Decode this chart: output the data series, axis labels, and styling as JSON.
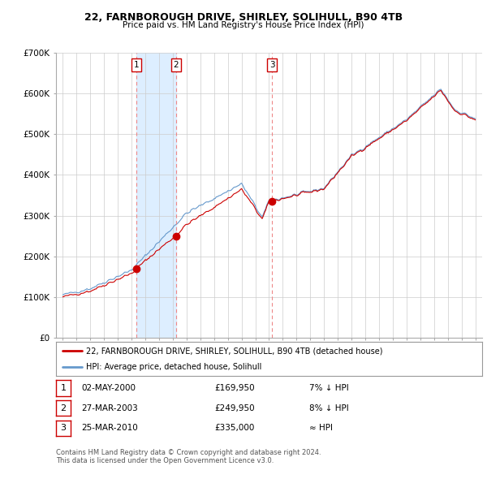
{
  "title": "22, FARNBOROUGH DRIVE, SHIRLEY, SOLIHULL, B90 4TB",
  "subtitle": "Price paid vs. HM Land Registry's House Price Index (HPI)",
  "legend_label_red": "22, FARNBOROUGH DRIVE, SHIRLEY, SOLIHULL, B90 4TB (detached house)",
  "legend_label_blue": "HPI: Average price, detached house, Solihull",
  "footnote1": "Contains HM Land Registry data © Crown copyright and database right 2024.",
  "footnote2": "This data is licensed under the Open Government Licence v3.0.",
  "transactions": [
    {
      "num": 1,
      "date": "02-MAY-2000",
      "price": "£169,950",
      "rel": "7% ↓ HPI",
      "year": 2000.37,
      "value": 169950
    },
    {
      "num": 2,
      "date": "27-MAR-2003",
      "price": "£249,950",
      "rel": "8% ↓ HPI",
      "year": 2003.23,
      "value": 249950
    },
    {
      "num": 3,
      "date": "25-MAR-2010",
      "price": "£335,000",
      "rel": "≈ HPI",
      "year": 2010.23,
      "value": 335000
    }
  ],
  "ylim": [
    0,
    700000
  ],
  "yticks": [
    0,
    100000,
    200000,
    300000,
    400000,
    500000,
    600000,
    700000
  ],
  "ytick_labels": [
    "£0",
    "£100K",
    "£200K",
    "£300K",
    "£400K",
    "£500K",
    "£600K",
    "£700K"
  ],
  "background_color": "#ffffff",
  "grid_color": "#cccccc",
  "red_line_color": "#cc0000",
  "blue_line_color": "#6699cc",
  "shade_color": "#ddeeff",
  "dashed_color": "#ee8888"
}
